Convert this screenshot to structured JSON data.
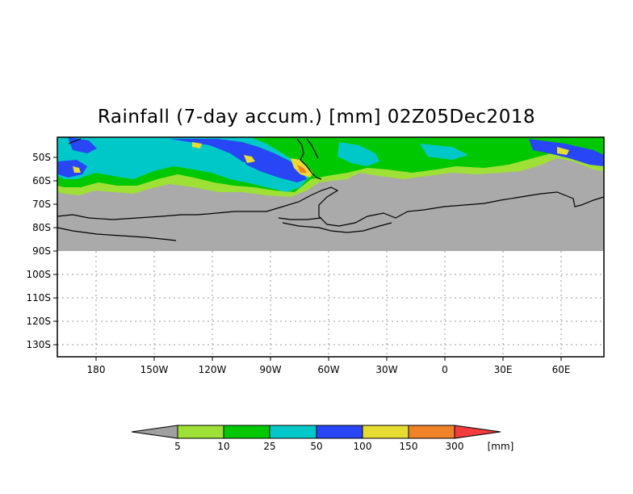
{
  "title": "Rainfall (7-day accum.) [mm] 02Z05Dec2018",
  "lat_ticks": [
    "50S",
    "60S",
    "70S",
    "80S",
    "90S",
    "100S",
    "110S",
    "120S",
    "130S"
  ],
  "lon_ticks": [
    "180",
    "150W",
    "120W",
    "90W",
    "60W",
    "30W",
    "0",
    "30E",
    "60E"
  ],
  "legend": {
    "labels": [
      "5",
      "10",
      "25",
      "50",
      "100",
      "150",
      "300"
    ],
    "unit": "[mm]",
    "colors": [
      "#a0a0a0",
      "#9ee035",
      "#00c800",
      "#00c8c8",
      "#2846f5",
      "#e6dc32",
      "#f08228",
      "#f03c3c"
    ]
  },
  "colors": {
    "no_data": "#aaaaaa",
    "frame": "#000000",
    "grid": "#9a9a9a"
  }
}
